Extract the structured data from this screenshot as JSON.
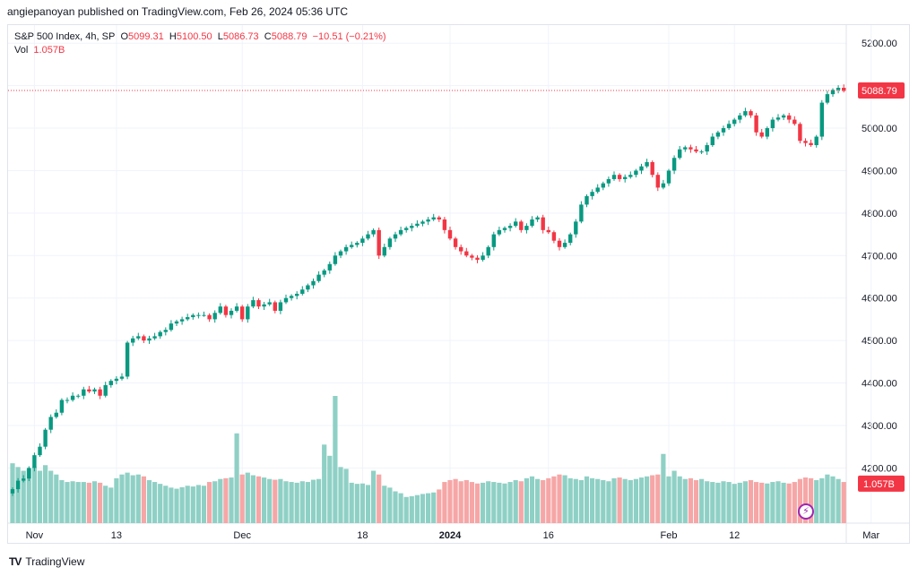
{
  "header": {
    "publisher_text": "angiepanoyan published on TradingView.com, Feb 26, 2024 05:36 UTC"
  },
  "legend": {
    "symbol": "S&P 500 Index, 4h, SP",
    "open_label": "O",
    "open": "5099.31",
    "high_label": "H",
    "high": "5100.50",
    "low_label": "L",
    "low": "5086.73",
    "close_label": "C",
    "close": "5088.79",
    "change": "−10.51 (−0.21%)",
    "vol_label": "Vol",
    "vol": "1.057B"
  },
  "footer": {
    "brand": "TradingView",
    "logo": "TV"
  },
  "icons": {
    "bolt": "⚡"
  },
  "colors": {
    "up": "#089981",
    "down": "#f23645",
    "vol_up": "#8fd0c5",
    "vol_down": "#f6a6a6"
  },
  "chart_data": {
    "type": "candlestick",
    "title": "S&P 500 Index, 4h, SP",
    "y_axis": {
      "min": 4070,
      "max": 5230,
      "ticks": [
        4200,
        4300,
        4400,
        4500,
        4600,
        4700,
        4800,
        4900,
        5000,
        5100,
        5200
      ],
      "tick_labels": [
        "4200.00",
        "4300.00",
        "4400.00",
        "4500.00",
        "4600.00",
        "4700.00",
        "4800.00",
        "4900.00",
        "5000.00",
        "5100.00",
        "5200.00"
      ]
    },
    "x_axis": {
      "labels": [
        {
          "text": "Nov",
          "bar": 4
        },
        {
          "text": "13",
          "bar": 19
        },
        {
          "text": "Dec",
          "bar": 42
        },
        {
          "text": "18",
          "bar": 64
        },
        {
          "text": "2024",
          "bar": 80
        },
        {
          "text": "16",
          "bar": 98
        },
        {
          "text": "Feb",
          "bar": 120
        },
        {
          "text": "12",
          "bar": 132
        },
        {
          "text": "Mar",
          "bar": 157
        }
      ]
    },
    "last_price": "5088.79",
    "last_volume": "1.057B",
    "closes": [
      4150,
      4170,
      4175,
      4200,
      4230,
      4250,
      4290,
      4320,
      4330,
      4360,
      4360,
      4370,
      4370,
      4385,
      4380,
      4385,
      4370,
      4395,
      4405,
      4410,
      4415,
      4495,
      4505,
      4510,
      4500,
      4505,
      4510,
      4520,
      4525,
      4540,
      4545,
      4550,
      4555,
      4560,
      4560,
      4560,
      4550,
      4565,
      4580,
      4560,
      4570,
      4580,
      4550,
      4580,
      4595,
      4580,
      4585,
      4590,
      4570,
      4590,
      4600,
      4605,
      4610,
      4620,
      4630,
      4640,
      4655,
      4665,
      4680,
      4700,
      4710,
      4720,
      4725,
      4730,
      4740,
      4750,
      4760,
      4700,
      4720,
      4740,
      4750,
      4760,
      4765,
      4770,
      4775,
      4780,
      4785,
      4790,
      4785,
      4760,
      4740,
      4720,
      4710,
      4700,
      4695,
      4690,
      4700,
      4720,
      4750,
      4760,
      4765,
      4770,
      4780,
      4760,
      4770,
      4785,
      4790,
      4760,
      4755,
      4735,
      4720,
      4730,
      4750,
      4780,
      4820,
      4840,
      4850,
      4860,
      4870,
      4880,
      4890,
      4880,
      4885,
      4890,
      4900,
      4910,
      4920,
      4890,
      4860,
      4870,
      4900,
      4930,
      4950,
      4955,
      4950,
      4945,
      4945,
      4960,
      4980,
      4990,
      5000,
      5010,
      5020,
      5030,
      5040,
      5030,
      4990,
      4980,
      5000,
      5020,
      5025,
      5030,
      5020,
      5010,
      4970,
      4965,
      4960,
      4980,
      5060,
      5080,
      5090,
      5095,
      5088
    ],
    "volumes": [
      160,
      150,
      140,
      145,
      150,
      140,
      155,
      140,
      130,
      115,
      110,
      112,
      110,
      110,
      108,
      112,
      108,
      100,
      95,
      120,
      130,
      135,
      128,
      130,
      125,
      115,
      110,
      105,
      100,
      95,
      92,
      96,
      100,
      98,
      102,
      100,
      110,
      112,
      118,
      120,
      122,
      240,
      130,
      135,
      128,
      125,
      122,
      118,
      116,
      118,
      112,
      110,
      108,
      112,
      110,
      116,
      118,
      210,
      180,
      340,
      150,
      145,
      108,
      105,
      106,
      102,
      140,
      130,
      100,
      95,
      85,
      80,
      70,
      72,
      75,
      78,
      80,
      82,
      90,
      110,
      115,
      118,
      112,
      115,
      110,
      106,
      108,
      112,
      110,
      108,
      106,
      110,
      115,
      112,
      120,
      125,
      118,
      115,
      120,
      125,
      130,
      128,
      120,
      118,
      115,
      125,
      120,
      118,
      115,
      112,
      120,
      122,
      118,
      115,
      118,
      122,
      125,
      128,
      130,
      185,
      125,
      140,
      125,
      118,
      120,
      115,
      118,
      112,
      110,
      108,
      112,
      110,
      105,
      108,
      112,
      115,
      110,
      108,
      106,
      110,
      112,
      108,
      106,
      110,
      118,
      122,
      120,
      115,
      120,
      130,
      125,
      118,
      110
    ]
  }
}
